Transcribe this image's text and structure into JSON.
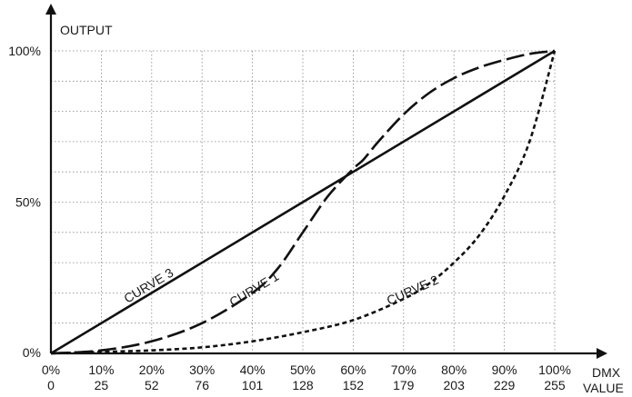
{
  "chart_data": {
    "type": "line",
    "ylabel": "OUTPUT",
    "xlabel": [
      "DMX",
      "VALUE"
    ],
    "xlim": [
      0,
      100
    ],
    "ylim": [
      0,
      100
    ],
    "grid": true,
    "x_ticks": [
      {
        "value": 0,
        "pct": "0%",
        "dmx": "0"
      },
      {
        "value": 10,
        "pct": "10%",
        "dmx": "25"
      },
      {
        "value": 20,
        "pct": "20%",
        "dmx": "52"
      },
      {
        "value": 30,
        "pct": "30%",
        "dmx": "76"
      },
      {
        "value": 40,
        "pct": "40%",
        "dmx": "101"
      },
      {
        "value": 50,
        "pct": "50%",
        "dmx": "128"
      },
      {
        "value": 60,
        "pct": "60%",
        "dmx": "152"
      },
      {
        "value": 70,
        "pct": "70%",
        "dmx": "179"
      },
      {
        "value": 80,
        "pct": "80%",
        "dmx": "203"
      },
      {
        "value": 90,
        "pct": "90%",
        "dmx": "229"
      },
      {
        "value": 100,
        "pct": "100%",
        "dmx": "255"
      }
    ],
    "y_ticks": [
      {
        "value": 0,
        "label": "0%"
      },
      {
        "value": 50,
        "label": "50%"
      },
      {
        "value": 100,
        "label": "100%"
      }
    ],
    "series": [
      {
        "name": "CURVE 1",
        "style": "long-dash",
        "x": [
          0,
          10,
          20,
          30,
          40,
          45,
          50,
          55,
          60,
          62,
          65,
          70,
          75,
          80,
          85,
          90,
          95,
          100
        ],
        "y": [
          0,
          1,
          4,
          10,
          20,
          28,
          40,
          52,
          61,
          64,
          70,
          79,
          86,
          91,
          94.5,
          97,
          99,
          100
        ]
      },
      {
        "name": "CURVE 2",
        "style": "short-dash",
        "x": [
          0,
          10,
          20,
          30,
          40,
          50,
          60,
          70,
          75,
          80,
          85,
          90,
          95,
          100
        ],
        "y": [
          0,
          0.5,
          1,
          2,
          4,
          7,
          11,
          18,
          23,
          30,
          39,
          52,
          70,
          100
        ]
      },
      {
        "name": "CURVE 3",
        "style": "solid",
        "x": [
          0,
          100
        ],
        "y": [
          0,
          100
        ]
      }
    ]
  }
}
